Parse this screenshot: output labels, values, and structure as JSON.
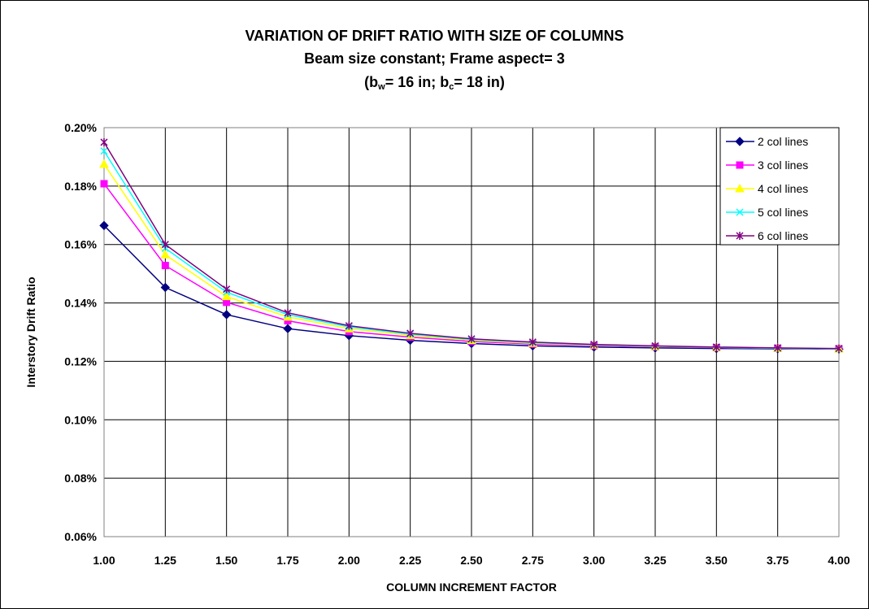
{
  "chart_data": {
    "type": "line",
    "title": "VARIATION OF DRIFT RATIO WITH SIZE OF COLUMNS",
    "subtitle": "Beam size constant; Frame aspect= 3",
    "subtitle2": {
      "prefix": "(b",
      "sub1": "w",
      "mid": "= 16 in; b",
      "sub2": "c",
      "suffix": "= 18 in)"
    },
    "xlabel": "COLUMN INCREMENT FACTOR",
    "ylabel": "Interstory Drift Ratio",
    "x": [
      1.0,
      1.25,
      1.5,
      1.75,
      2.0,
      2.25,
      2.5,
      2.75,
      3.0,
      3.25,
      3.5,
      3.75,
      4.0
    ],
    "x_tick_labels": [
      "1.00",
      "1.25",
      "1.50",
      "1.75",
      "2.00",
      "2.25",
      "2.50",
      "2.75",
      "3.00",
      "3.25",
      "3.50",
      "3.75",
      "4.00"
    ],
    "xlim": [
      1.0,
      4.0
    ],
    "ylim": [
      0.0006,
      0.002
    ],
    "y_ticks": [
      0.0006,
      0.0008,
      0.001,
      0.0012,
      0.0014,
      0.0016,
      0.0018,
      0.002
    ],
    "y_tick_labels": [
      "0.06%",
      "0.08%",
      "0.10%",
      "0.12%",
      "0.14%",
      "0.16%",
      "0.18%",
      "0.20%"
    ],
    "grid": true,
    "legend_position": "top-right",
    "series": [
      {
        "name": "2 col lines",
        "color": "#000080",
        "marker": "diamond",
        "values": [
          0.001665,
          0.001453,
          0.00136,
          0.001312,
          0.001288,
          0.001272,
          0.001261,
          0.001253,
          0.001249,
          0.001246,
          0.001244,
          0.001243,
          0.001242
        ]
      },
      {
        "name": "3 col lines",
        "color": "#FF00FF",
        "marker": "square",
        "values": [
          0.001808,
          0.001528,
          0.001402,
          0.001339,
          0.001302,
          0.001283,
          0.001268,
          0.001259,
          0.001254,
          0.00125,
          0.001247,
          0.001245,
          0.001243
        ]
      },
      {
        "name": "4 col lines",
        "color": "#FFFF00",
        "marker": "triangle",
        "values": [
          0.001875,
          0.001565,
          0.001422,
          0.001352,
          0.001312,
          0.001289,
          0.001272,
          0.001262,
          0.001256,
          0.001251,
          0.001248,
          0.001245,
          0.001243
        ]
      },
      {
        "name": "5 col lines",
        "color": "#00FFFF",
        "marker": "x",
        "values": [
          0.00192,
          0.001587,
          0.001437,
          0.00136,
          0.001318,
          0.001293,
          0.001275,
          0.001264,
          0.001257,
          0.001252,
          0.001248,
          0.001245,
          0.001243
        ]
      },
      {
        "name": "6 col lines",
        "color": "#800080",
        "marker": "star",
        "values": [
          0.00195,
          0.0016,
          0.001447,
          0.001366,
          0.001322,
          0.001296,
          0.001277,
          0.001266,
          0.001258,
          0.001253,
          0.001249,
          0.001246,
          0.001244
        ]
      }
    ]
  }
}
